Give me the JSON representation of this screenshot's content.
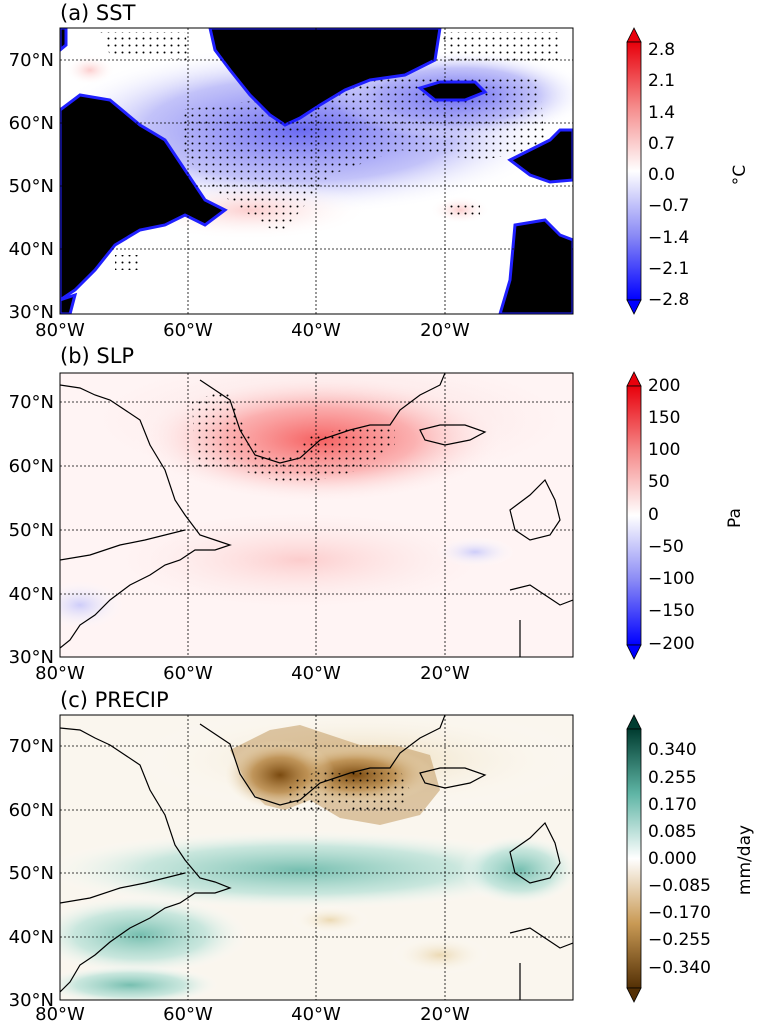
{
  "x_ticks": [
    "80°W",
    "60°W",
    "40°W",
    "20°W"
  ],
  "y_ticks": [
    "30°N",
    "40°N",
    "50°N",
    "60°N",
    "70°N"
  ],
  "panels": [
    {
      "title": "(a) SST",
      "unit": "°C",
      "colormap": "blue-white-red",
      "colorbar_ticks": [
        "2.8",
        "2.1",
        "1.4",
        "0.7",
        "0.0",
        "−0.7",
        "−1.4",
        "−2.1",
        "−2.8"
      ],
      "land_mask_color": "#000000"
    },
    {
      "title": "(b) SLP",
      "unit": "Pa",
      "colormap": "blue-white-red",
      "colorbar_ticks": [
        "200",
        "150",
        "100",
        "50",
        "0",
        "−50",
        "−100",
        "−150",
        "−200"
      ]
    },
    {
      "title": "(c) PRECIP",
      "unit": "mm/day",
      "colormap": "brown-white-teal",
      "colorbar_ticks": [
        "0.340",
        "0.255",
        "0.170",
        "0.085",
        "0.000",
        "−0.085",
        "−0.170",
        "−0.255",
        "−0.340"
      ]
    }
  ],
  "colors": {
    "red_max": "#e8000b",
    "blue_min": "#0000ff",
    "teal_max": "#003c30",
    "brown_min": "#543005"
  }
}
